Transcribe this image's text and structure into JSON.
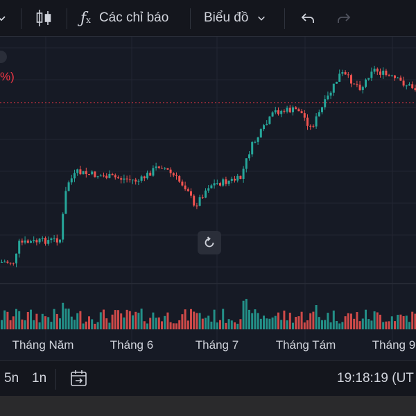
{
  "toolbar": {
    "indicators_label": "Các chỉ báo",
    "chart_type_label": "Biểu đồ"
  },
  "chart": {
    "percent_label": "%)",
    "month_labels": [
      "Tháng Năm",
      "Tháng 6",
      "Tháng 7",
      "Tháng Tám",
      "Tháng 9"
    ],
    "colors": {
      "up": "#26a69a",
      "down": "#ef5350",
      "grid": "#232632",
      "priceline": "#f23645"
    }
  },
  "chart_data": {
    "type": "candlestick",
    "x": [
      "Tháng Năm",
      "Tháng 6",
      "Tháng 7",
      "Tháng Tám",
      "Tháng 9"
    ],
    "title": "",
    "xlabel": "",
    "ylabel": "",
    "grid": true
  },
  "bottombar": {
    "range_5y": "5n",
    "range_1y": "1n",
    "time": "19:18:19 (UT"
  }
}
